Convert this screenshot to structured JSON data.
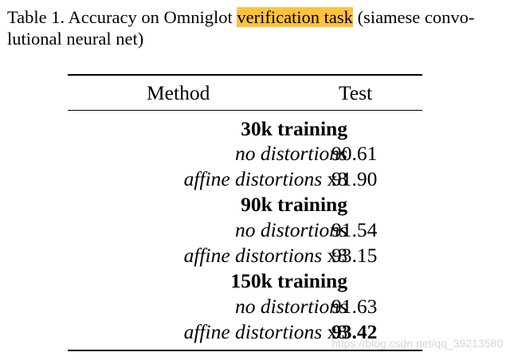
{
  "caption": {
    "prefix": "Table 1. Accuracy on Omniglot ",
    "highlight": "verification task",
    "suffix": " (siamese convo-lutional neural net)",
    "highlight_color": "#ffc23d"
  },
  "table": {
    "headers": {
      "method": "Method",
      "test": "Test"
    },
    "rows": [
      {
        "type": "group",
        "method": "30k training"
      },
      {
        "type": "data",
        "method_italic": "no distortions",
        "method_suffix": "",
        "test": "90.61",
        "bold": false
      },
      {
        "type": "data",
        "method_italic": "affine distortions",
        "method_suffix": " x8",
        "test": "91.90",
        "bold": false
      },
      {
        "type": "group",
        "method": "90k training"
      },
      {
        "type": "data",
        "method_italic": "no distortions",
        "method_suffix": "",
        "test": "91.54",
        "bold": false
      },
      {
        "type": "data",
        "method_italic": "affine distortions",
        "method_suffix": " x8",
        "test": "93.15",
        "bold": false
      },
      {
        "type": "group",
        "method": "150k training"
      },
      {
        "type": "data",
        "method_italic": "no distortions",
        "method_suffix": "",
        "test": "91.63",
        "bold": false
      },
      {
        "type": "data",
        "method_italic": "affine distortions",
        "method_suffix": " x8",
        "test": "93.42",
        "bold": true
      }
    ]
  },
  "watermark": "https://blog.csdn.net/qq_39213580"
}
